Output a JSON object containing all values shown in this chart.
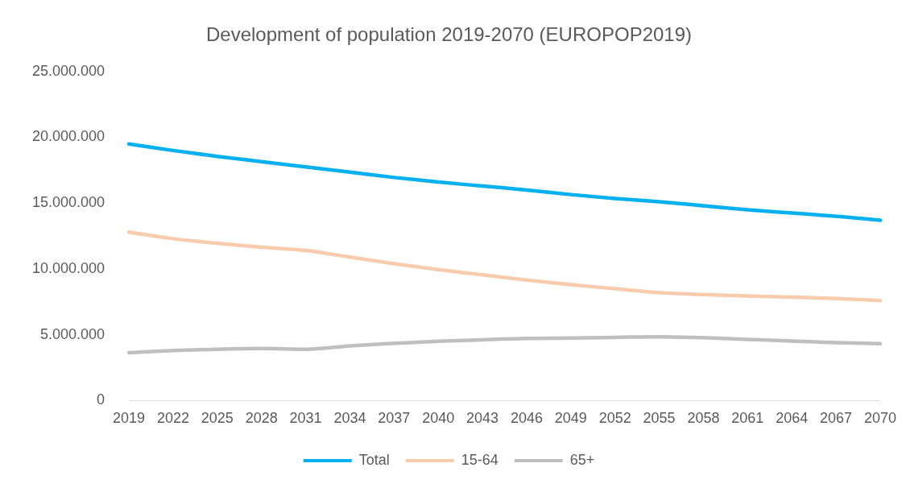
{
  "chart_data": {
    "type": "line",
    "title": "Development of population 2019-2070 (EUROPOP2019)",
    "categories": [
      "2019",
      "2022",
      "2025",
      "2028",
      "2031",
      "2034",
      "2037",
      "2040",
      "2043",
      "2046",
      "2049",
      "2052",
      "2055",
      "2058",
      "2061",
      "2064",
      "2067",
      "2070"
    ],
    "series": [
      {
        "name": "Total",
        "color": "#00b0f0",
        "values": [
          19500000,
          19000000,
          18550000,
          18150000,
          17750000,
          17350000,
          16950000,
          16600000,
          16300000,
          16000000,
          15650000,
          15350000,
          15100000,
          14800000,
          14500000,
          14250000,
          14000000,
          13700000
        ]
      },
      {
        "name": "15-64",
        "color": "#f8cbad",
        "values": [
          12800000,
          12300000,
          11950000,
          11650000,
          11400000,
          10900000,
          10400000,
          9950000,
          9550000,
          9150000,
          8800000,
          8500000,
          8200000,
          8050000,
          7950000,
          7850000,
          7750000,
          7600000
        ]
      },
      {
        "name": "65+",
        "color": "#bfbfbf",
        "values": [
          3640000,
          3800000,
          3900000,
          3950000,
          3900000,
          4150000,
          4350000,
          4500000,
          4620000,
          4720000,
          4750000,
          4800000,
          4850000,
          4780000,
          4650000,
          4520000,
          4400000,
          4330000
        ]
      }
    ],
    "ylim": [
      0,
      25000000
    ],
    "yticks": [
      {
        "value": 0,
        "label": "0"
      },
      {
        "value": 5000000,
        "label": "5.000.000"
      },
      {
        "value": 10000000,
        "label": "10.000.000"
      },
      {
        "value": 15000000,
        "label": "15.000.000"
      },
      {
        "value": 20000000,
        "label": "20.000.000"
      },
      {
        "value": 25000000,
        "label": "25.000.000"
      }
    ],
    "grid": false,
    "legend": "bottom",
    "marker": "none",
    "line_style": "solid"
  }
}
